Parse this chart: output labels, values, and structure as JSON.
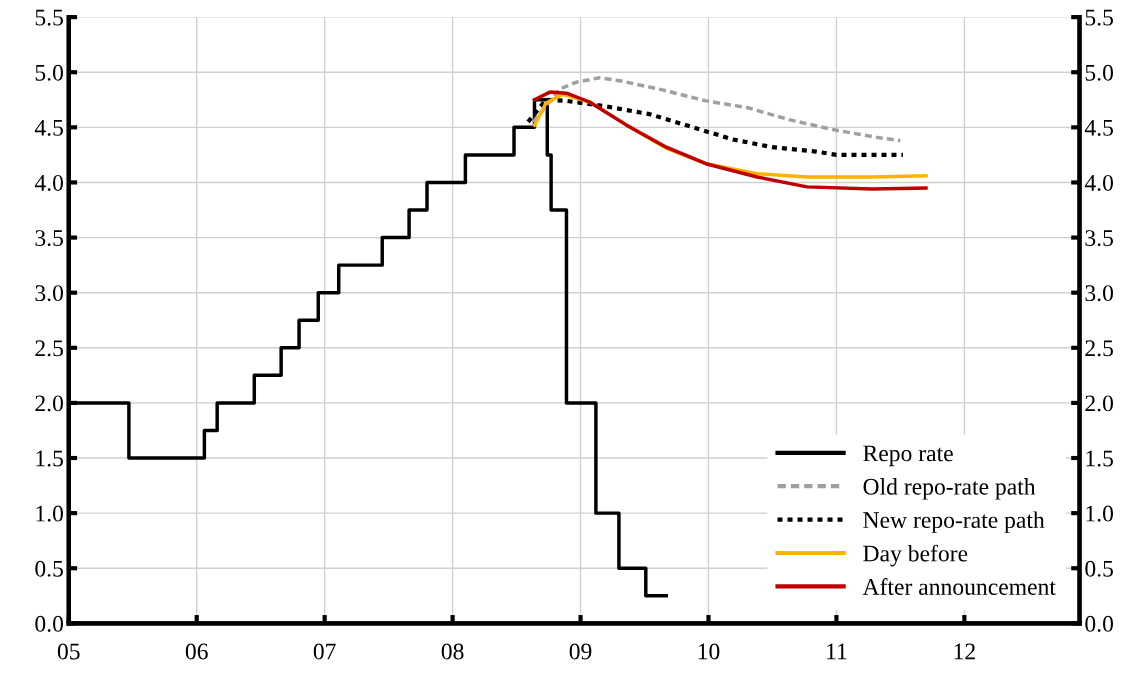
{
  "chart_data": {
    "type": "line",
    "xlim": [
      2005,
      2012.9
    ],
    "xticks": [
      {
        "value": 2005,
        "label": "05"
      },
      {
        "value": 2006,
        "label": "06"
      },
      {
        "value": 2007,
        "label": "07"
      },
      {
        "value": 2008,
        "label": "08"
      },
      {
        "value": 2009,
        "label": "09"
      },
      {
        "value": 2010,
        "label": "10"
      },
      {
        "value": 2011,
        "label": "11"
      },
      {
        "value": 2012,
        "label": "12"
      }
    ],
    "ylim": [
      0,
      5.5
    ],
    "yticks": [
      {
        "value": 0,
        "label": "0.0"
      },
      {
        "value": 0.5,
        "label": "0.5"
      },
      {
        "value": 1,
        "label": "1.0"
      },
      {
        "value": 1.5,
        "label": "1.5"
      },
      {
        "value": 2,
        "label": "2.0"
      },
      {
        "value": 2.5,
        "label": "2.5"
      },
      {
        "value": 3,
        "label": "3.0"
      },
      {
        "value": 3.5,
        "label": "3.5"
      },
      {
        "value": 4,
        "label": "4.0"
      },
      {
        "value": 4.5,
        "label": "4.5"
      },
      {
        "value": 5,
        "label": "5.0"
      },
      {
        "value": 5.5,
        "label": "5.5"
      }
    ],
    "y2lim": [
      0,
      5.5
    ],
    "y2ticks": [
      {
        "value": 0,
        "label": "0.0"
      },
      {
        "value": 0.5,
        "label": "0.5"
      },
      {
        "value": 1,
        "label": "1.0"
      },
      {
        "value": 1.5,
        "label": "1.5"
      },
      {
        "value": 2,
        "label": "2.0"
      },
      {
        "value": 2.5,
        "label": "2.5"
      },
      {
        "value": 3,
        "label": "3.0"
      },
      {
        "value": 3.5,
        "label": "3.5"
      },
      {
        "value": 4,
        "label": "4.0"
      },
      {
        "value": 4.5,
        "label": "4.5"
      },
      {
        "value": 5,
        "label": "5.0"
      },
      {
        "value": 5.5,
        "label": "5.5"
      }
    ],
    "grid": true,
    "legend": "bottom right",
    "marker": "none",
    "series": [
      {
        "name": "Repo rate",
        "type": "step",
        "color": "#000000",
        "line_style": "solid",
        "x": [
          2005,
          2005.47,
          2006.06,
          2006.16,
          2006.45,
          2006.66,
          2006.8,
          2006.95,
          2007.11,
          2007.45,
          2007.66,
          2007.8,
          2008.1,
          2008.48,
          2008.64,
          2008.74,
          2008.77,
          2008.89,
          2009.12,
          2009.3,
          2009.51,
          2009.67
        ],
        "values": [
          2.0,
          1.5,
          1.75,
          2.0,
          2.25,
          2.5,
          2.75,
          3.0,
          3.25,
          3.5,
          3.75,
          4.0,
          4.25,
          4.5,
          4.75,
          4.25,
          3.75,
          2.0,
          1.0,
          0.5,
          0.25,
          0.25
        ]
      },
      {
        "name": "Old repo-rate path",
        "color": "#a0a0a0",
        "line_style": "dashed",
        "x": [
          2008.63,
          2008.84,
          2008.97,
          2009.15,
          2009.32,
          2009.64,
          2009.98,
          2010.3,
          2010.63,
          2010.97,
          2011.31,
          2011.5
        ],
        "values": [
          4.55,
          4.85,
          4.91,
          4.95,
          4.92,
          4.84,
          4.74,
          4.68,
          4.57,
          4.48,
          4.41,
          4.38
        ]
      },
      {
        "name": "New repo-rate path",
        "color": "#000000",
        "line_style": "dotted",
        "x": [
          2008.59,
          2008.73,
          2008.89,
          2009.2,
          2009.54,
          2009.88,
          2010.19,
          2010.5,
          2010.84,
          2011.0,
          2011.52
        ],
        "values": [
          4.55,
          4.75,
          4.74,
          4.69,
          4.62,
          4.5,
          4.39,
          4.32,
          4.28,
          4.25,
          4.25
        ]
      },
      {
        "name": "Day before",
        "color": "#ffb300",
        "line_style": "solid",
        "x": [
          2008.64,
          2008.73,
          2008.86,
          2009.07,
          2009.36,
          2009.67,
          2009.98,
          2010.38,
          2010.77,
          2011.28,
          2011.7
        ],
        "values": [
          4.52,
          4.72,
          4.8,
          4.73,
          4.52,
          4.31,
          4.17,
          4.08,
          4.05,
          4.05,
          4.06
        ]
      },
      {
        "name": "After announcement",
        "color": "#c00000",
        "line_style": "solid",
        "x": [
          2008.64,
          2008.76,
          2008.89,
          2009.07,
          2009.36,
          2009.67,
          2009.98,
          2010.38,
          2010.77,
          2011.28,
          2011.7
        ],
        "values": [
          4.75,
          4.82,
          4.81,
          4.73,
          4.52,
          4.32,
          4.17,
          4.05,
          3.96,
          3.94,
          3.95
        ]
      }
    ]
  }
}
